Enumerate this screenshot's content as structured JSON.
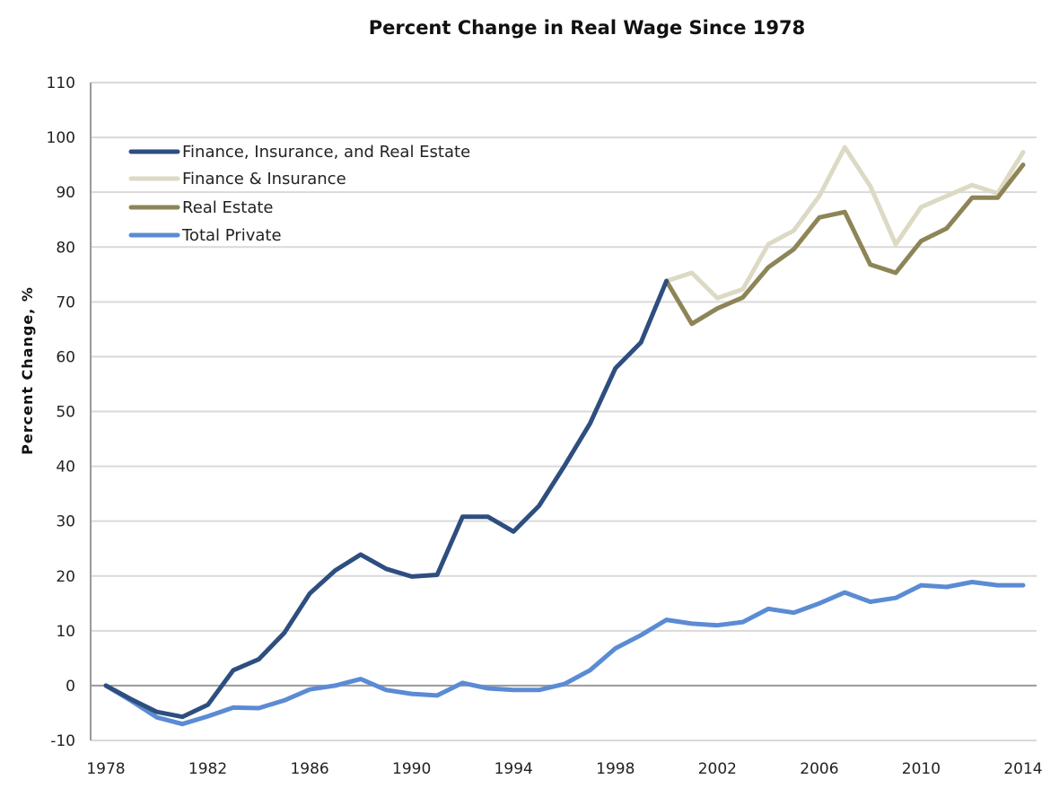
{
  "chart_data": {
    "type": "line",
    "title": "Percent Change in Real Wage Since 1978",
    "xlabel": "",
    "ylabel": "Percent Change, %",
    "xlim": [
      1978,
      2014
    ],
    "ylim": [
      -10,
      110
    ],
    "yticks": [
      "110",
      "100",
      "90",
      "80",
      "70",
      "60",
      "50",
      "40",
      "30",
      "20",
      "10",
      "0",
      "-10"
    ],
    "ytick_values": [
      110,
      100,
      90,
      80,
      70,
      60,
      50,
      40,
      30,
      20,
      10,
      0,
      -10
    ],
    "xticks": [
      "1978",
      "1982",
      "1986",
      "1990",
      "1994",
      "1998",
      "2002",
      "2006",
      "2010",
      "2014"
    ],
    "xtick_values": [
      1978,
      1982,
      1986,
      1990,
      1994,
      1998,
      2002,
      2006,
      2010,
      2014
    ],
    "grid": true,
    "legend_position": "top-left",
    "series": [
      {
        "name": "Finance, Insurance, and Real Estate",
        "color": "#2e4e80",
        "x": [
          1978,
          1979,
          1980,
          1981,
          1982,
          1983,
          1984,
          1985,
          1986,
          1987,
          1988,
          1989,
          1990,
          1991,
          1992,
          1993,
          1994,
          1995,
          1996,
          1997,
          1998,
          1999,
          2000
        ],
        "values": [
          0,
          -2.5,
          -4.8,
          -5.7,
          -3.5,
          2.8,
          4.8,
          9.6,
          16.8,
          21.0,
          23.9,
          21.3,
          19.9,
          20.2,
          30.8,
          30.8,
          28.1,
          32.8,
          40.1,
          47.8,
          57.9,
          62.6,
          73.8
        ]
      },
      {
        "name": "Finance & Insurance",
        "color": "#dcdac4",
        "x": [
          2000,
          2001,
          2002,
          2003,
          2004,
          2005,
          2006,
          2007,
          2008,
          2009,
          2010,
          2011,
          2012,
          2013,
          2014
        ],
        "values": [
          73.8,
          75.3,
          70.7,
          72.3,
          80.5,
          83.0,
          89.3,
          98.2,
          91.1,
          80.5,
          87.3,
          89.3,
          91.3,
          89.8,
          97.3
        ]
      },
      {
        "name": "Real Estate",
        "color": "#8d8557",
        "x": [
          2000,
          2001,
          2002,
          2003,
          2004,
          2005,
          2006,
          2007,
          2008,
          2009,
          2010,
          2011,
          2012,
          2013,
          2014
        ],
        "values": [
          73.8,
          66.0,
          68.8,
          70.8,
          76.3,
          79.6,
          85.4,
          86.4,
          76.8,
          75.3,
          81.1,
          83.4,
          89.0,
          89.0,
          95.0
        ]
      },
      {
        "name": "Total Private",
        "color": "#5b8bd4",
        "x": [
          1978,
          1979,
          1980,
          1981,
          1982,
          1983,
          1984,
          1985,
          1986,
          1987,
          1988,
          1989,
          1990,
          1991,
          1992,
          1993,
          1994,
          1995,
          1996,
          1997,
          1998,
          1999,
          2000,
          2001,
          2002,
          2003,
          2004,
          2005,
          2006,
          2007,
          2008,
          2009,
          2010,
          2011,
          2012,
          2013,
          2014
        ],
        "values": [
          0,
          -2.8,
          -5.8,
          -7.0,
          -5.6,
          -4.0,
          -4.1,
          -2.7,
          -0.7,
          0,
          1.2,
          -0.8,
          -1.5,
          -1.8,
          0.5,
          -0.5,
          -0.8,
          -0.8,
          0.3,
          2.8,
          6.8,
          9.2,
          12.0,
          11.3,
          11.0,
          11.6,
          14.0,
          13.3,
          15.0,
          17.0,
          15.3,
          16.0,
          18.3,
          18.0,
          18.9,
          18.3,
          18.3
        ]
      }
    ]
  }
}
